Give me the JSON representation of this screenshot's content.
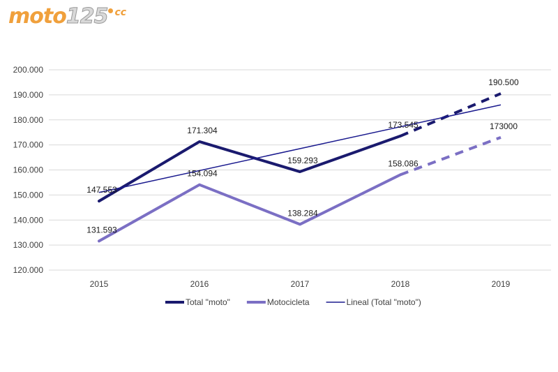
{
  "logo": {
    "brand": "moto",
    "number": "125",
    "suffix": "cc"
  },
  "chart_data": {
    "type": "line",
    "categories": [
      "2015",
      "2016",
      "2017",
      "2018",
      "2019"
    ],
    "y_ticks": [
      "120.000",
      "130.000",
      "140.000",
      "150.000",
      "160.000",
      "170.000",
      "180.000",
      "190.000",
      "200.000"
    ],
    "ylim": [
      120000,
      200000
    ],
    "grid": true,
    "legend_position": "bottom",
    "series": [
      {
        "name": "Total \"moto\"",
        "color": "#1a1a6e",
        "values": [
          147553,
          171304,
          159293,
          173545,
          190500
        ],
        "labels": [
          "147.553",
          "171.304",
          "159.293",
          "173.545",
          "190.500"
        ],
        "projected_from_index": 3
      },
      {
        "name": "Motocicleta",
        "color": "#7b6fc4",
        "values": [
          131593,
          154094,
          138284,
          158086,
          173000
        ],
        "labels": [
          "131.593",
          "154.094",
          "138.284",
          "158.086",
          "173000"
        ],
        "projected_from_index": 3
      },
      {
        "name": "Lineal (Total \"moto\")",
        "color": "#1a1a8e",
        "trend": true,
        "values": [
          151000,
          159800,
          168500,
          177200,
          186000
        ]
      }
    ]
  }
}
